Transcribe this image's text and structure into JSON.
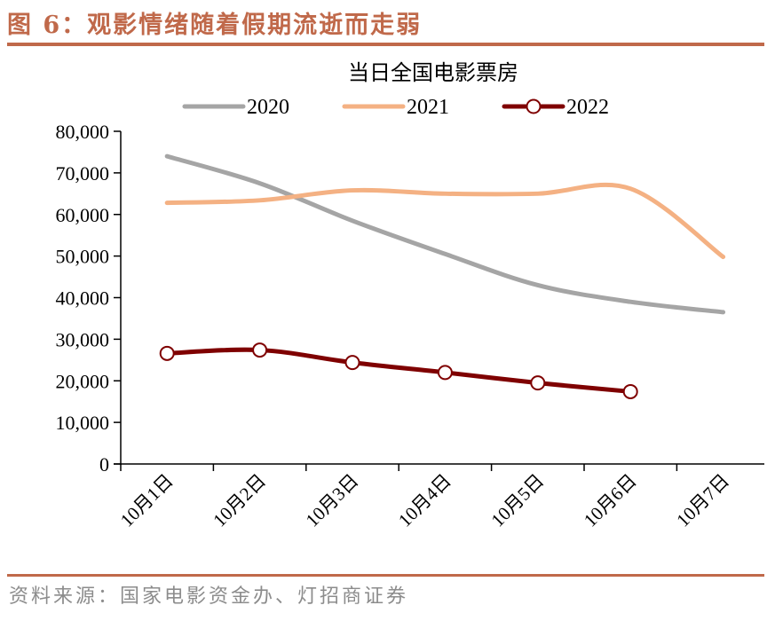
{
  "figure": {
    "title": "图 6：观影情绪随着假期流逝而走弱",
    "source": "资料来源：国家电影资金办、灯招商证券",
    "accent_color": "#c0694a"
  },
  "chart_data": {
    "type": "line",
    "title": "当日全国电影票房",
    "xlabel": "",
    "ylabel": "",
    "categories": [
      "10月1日",
      "10月2日",
      "10月3日",
      "10月4日",
      "10月5日",
      "10月6日",
      "10月7日"
    ],
    "ylim": [
      0,
      80000
    ],
    "yticks": [
      0,
      10000,
      20000,
      30000,
      40000,
      50000,
      60000,
      70000,
      80000
    ],
    "ytick_labels": [
      "0",
      "10,000",
      "20,000",
      "30,000",
      "40,000",
      "50,000",
      "60,000",
      "70,000",
      "80,000"
    ],
    "grid": false,
    "legend_position": "top",
    "series": [
      {
        "name": "2020",
        "color": "#a5a5a5",
        "marker": "none",
        "smooth": true,
        "values": [
          74000,
          67500,
          58500,
          50500,
          43000,
          39000,
          36500
        ]
      },
      {
        "name": "2021",
        "color": "#f4b183",
        "marker": "none",
        "smooth": true,
        "values": [
          62800,
          63400,
          65800,
          65000,
          65000,
          66200,
          49800
        ]
      },
      {
        "name": "2022",
        "color": "#7f0000",
        "marker": "circle-open",
        "smooth": true,
        "values": [
          26600,
          27400,
          24400,
          22000,
          19500,
          17400,
          null
        ]
      }
    ]
  }
}
